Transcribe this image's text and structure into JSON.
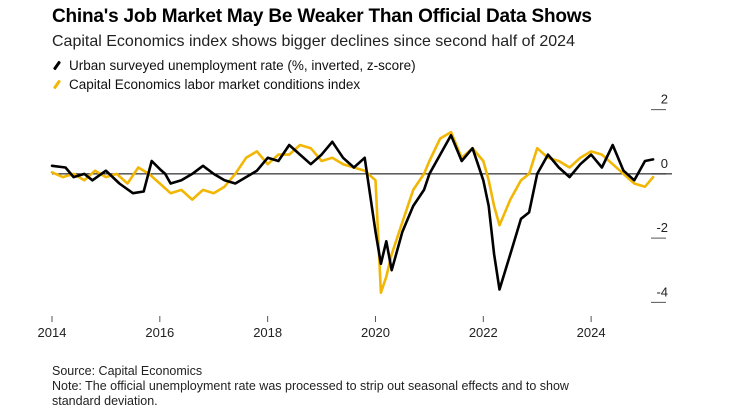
{
  "chart_data": {
    "type": "line",
    "title": "China's Job Market May Be Weaker Than Official Data Shows",
    "subtitle": "Capital Economics index shows bigger declines since second half of 2024",
    "xlabel": "",
    "ylabel": "",
    "xlim": [
      2014,
      2025.5
    ],
    "ylim": [
      -4.3,
      2.3
    ],
    "x_ticks": [
      {
        "value": 2014,
        "label": "2014"
      },
      {
        "value": 2016,
        "label": "2016"
      },
      {
        "value": 2018,
        "label": "2018"
      },
      {
        "value": 2020,
        "label": "2020"
      },
      {
        "value": 2022,
        "label": "2022"
      },
      {
        "value": 2024,
        "label": "2024"
      }
    ],
    "y_ticks": [
      {
        "value": 2,
        "label": "2"
      },
      {
        "value": 0,
        "label": "0"
      },
      {
        "value": -2,
        "label": "-2"
      },
      {
        "value": -4,
        "label": "-4"
      }
    ],
    "zero_line": true,
    "legend_position": "top-left",
    "series": [
      {
        "name": "Urban surveyed unemployment rate (%, inverted, z-score)",
        "color": "#000000",
        "points": [
          [
            2014.0,
            0.25
          ],
          [
            2014.25,
            0.2
          ],
          [
            2014.4,
            -0.1
          ],
          [
            2014.6,
            0.0
          ],
          [
            2014.75,
            -0.2
          ],
          [
            2015.0,
            0.1
          ],
          [
            2015.25,
            -0.3
          ],
          [
            2015.5,
            -0.6
          ],
          [
            2015.7,
            -0.55
          ],
          [
            2015.85,
            0.4
          ],
          [
            2016.0,
            0.15
          ],
          [
            2016.1,
            0.0
          ],
          [
            2016.2,
            -0.3
          ],
          [
            2016.4,
            -0.2
          ],
          [
            2016.6,
            0.0
          ],
          [
            2016.8,
            0.25
          ],
          [
            2017.0,
            0.0
          ],
          [
            2017.2,
            -0.2
          ],
          [
            2017.4,
            -0.3
          ],
          [
            2017.6,
            -0.1
          ],
          [
            2017.8,
            0.1
          ],
          [
            2018.0,
            0.5
          ],
          [
            2018.2,
            0.4
          ],
          [
            2018.4,
            0.9
          ],
          [
            2018.6,
            0.6
          ],
          [
            2018.8,
            0.3
          ],
          [
            2019.0,
            0.6
          ],
          [
            2019.2,
            1.0
          ],
          [
            2019.4,
            0.5
          ],
          [
            2019.6,
            0.2
          ],
          [
            2019.8,
            0.5
          ],
          [
            2020.0,
            -1.8
          ],
          [
            2020.1,
            -2.8
          ],
          [
            2020.2,
            -2.1
          ],
          [
            2020.3,
            -3.0
          ],
          [
            2020.5,
            -1.8
          ],
          [
            2020.7,
            -1.0
          ],
          [
            2020.9,
            -0.5
          ],
          [
            2021.0,
            0.0
          ],
          [
            2021.2,
            0.6
          ],
          [
            2021.4,
            1.2
          ],
          [
            2021.6,
            0.4
          ],
          [
            2021.8,
            0.8
          ],
          [
            2021.9,
            0.3
          ],
          [
            2022.0,
            -0.2
          ],
          [
            2022.1,
            -1.0
          ],
          [
            2022.2,
            -2.5
          ],
          [
            2022.3,
            -3.6
          ],
          [
            2022.5,
            -2.5
          ],
          [
            2022.7,
            -1.4
          ],
          [
            2022.85,
            -1.2
          ],
          [
            2023.0,
            0.0
          ],
          [
            2023.2,
            0.6
          ],
          [
            2023.4,
            0.2
          ],
          [
            2023.6,
            -0.1
          ],
          [
            2023.8,
            0.3
          ],
          [
            2024.0,
            0.6
          ],
          [
            2024.2,
            0.2
          ],
          [
            2024.4,
            0.9
          ],
          [
            2024.6,
            0.1
          ],
          [
            2024.8,
            -0.2
          ],
          [
            2025.0,
            0.4
          ],
          [
            2025.15,
            0.45
          ]
        ]
      },
      {
        "name": "Capital Economics labor market conditions index",
        "color": "#f2b705",
        "points": [
          [
            2014.0,
            0.05
          ],
          [
            2014.2,
            -0.1
          ],
          [
            2014.4,
            0.0
          ],
          [
            2014.6,
            -0.2
          ],
          [
            2014.8,
            0.1
          ],
          [
            2015.0,
            -0.1
          ],
          [
            2015.2,
            0.0
          ],
          [
            2015.4,
            -0.3
          ],
          [
            2015.6,
            0.2
          ],
          [
            2015.8,
            0.0
          ],
          [
            2016.0,
            -0.3
          ],
          [
            2016.2,
            -0.6
          ],
          [
            2016.4,
            -0.5
          ],
          [
            2016.6,
            -0.8
          ],
          [
            2016.8,
            -0.5
          ],
          [
            2017.0,
            -0.6
          ],
          [
            2017.2,
            -0.4
          ],
          [
            2017.4,
            0.0
          ],
          [
            2017.6,
            0.5
          ],
          [
            2017.8,
            0.7
          ],
          [
            2018.0,
            0.3
          ],
          [
            2018.2,
            0.6
          ],
          [
            2018.4,
            0.6
          ],
          [
            2018.6,
            0.9
          ],
          [
            2018.8,
            0.8
          ],
          [
            2019.0,
            0.4
          ],
          [
            2019.2,
            0.5
          ],
          [
            2019.4,
            0.3
          ],
          [
            2019.6,
            0.2
          ],
          [
            2019.8,
            0.1
          ],
          [
            2020.0,
            -0.2
          ],
          [
            2020.1,
            -3.7
          ],
          [
            2020.2,
            -3.2
          ],
          [
            2020.3,
            -2.5
          ],
          [
            2020.5,
            -1.5
          ],
          [
            2020.7,
            -0.5
          ],
          [
            2020.9,
            0.0
          ],
          [
            2021.0,
            0.4
          ],
          [
            2021.2,
            1.1
          ],
          [
            2021.4,
            1.3
          ],
          [
            2021.6,
            0.5
          ],
          [
            2021.8,
            0.8
          ],
          [
            2021.9,
            0.6
          ],
          [
            2022.0,
            0.4
          ],
          [
            2022.1,
            -0.2
          ],
          [
            2022.2,
            -1.0
          ],
          [
            2022.3,
            -1.6
          ],
          [
            2022.5,
            -0.8
          ],
          [
            2022.7,
            -0.2
          ],
          [
            2022.85,
            0.0
          ],
          [
            2023.0,
            0.8
          ],
          [
            2023.2,
            0.5
          ],
          [
            2023.4,
            0.4
          ],
          [
            2023.6,
            0.2
          ],
          [
            2023.8,
            0.5
          ],
          [
            2024.0,
            0.7
          ],
          [
            2024.2,
            0.6
          ],
          [
            2024.4,
            0.3
          ],
          [
            2024.6,
            0.0
          ],
          [
            2024.8,
            -0.3
          ],
          [
            2025.0,
            -0.4
          ],
          [
            2025.15,
            -0.1
          ]
        ]
      }
    ]
  },
  "footer": {
    "source": "Source: Capital Economics",
    "note_line1": "Note: The official unemployment rate was processed to strip out seasonal effects and to show",
    "note_line2": "standard deviation."
  }
}
